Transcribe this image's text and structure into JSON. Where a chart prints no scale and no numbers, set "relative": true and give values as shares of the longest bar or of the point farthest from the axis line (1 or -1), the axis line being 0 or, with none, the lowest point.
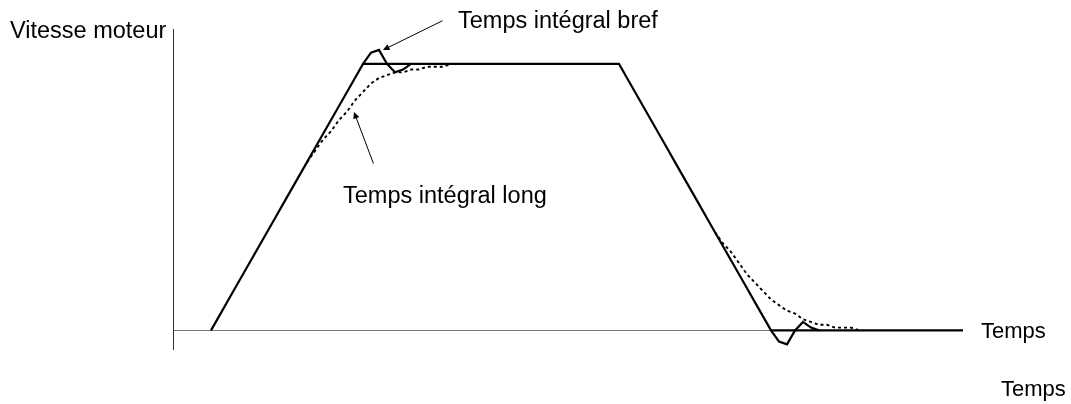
{
  "chart_data": {
    "type": "line",
    "relative": true,
    "xlabel": "Temps",
    "ylabel": "Vitesse moteur",
    "annotations": [
      "Temps intégral bref",
      "Temps intégral long",
      "Temps"
    ],
    "categories": [
      null,
      null,
      null,
      null,
      null,
      null,
      null,
      null,
      null,
      null,
      null,
      null,
      null,
      null,
      null,
      null,
      null,
      null,
      null,
      null,
      null,
      null,
      null,
      null,
      null,
      null,
      null,
      null,
      null,
      null,
      null,
      null,
      null,
      null,
      null,
      null,
      null,
      null,
      null,
      null,
      null,
      null,
      null,
      null,
      null,
      null,
      null,
      null,
      null,
      null,
      null,
      null,
      null,
      null,
      null,
      null,
      null,
      null,
      null,
      null,
      null,
      null,
      null,
      null,
      null,
      null,
      null,
      null,
      null,
      null,
      null,
      null,
      null,
      null,
      null,
      null,
      null,
      null,
      null,
      null,
      null,
      null,
      null,
      null,
      null,
      null,
      null,
      null,
      null,
      null,
      null,
      null,
      null,
      null,
      null,
      null,
      null,
      null,
      null
    ],
    "series": [
      {
        "color": "#000000",
        "line_style": "solid",
        "values": [
          null,
          null,
          null,
          null,
          0,
          0.05,
          0.1,
          0.15,
          0.2,
          0.25,
          0.3,
          0.35,
          0.4,
          0.45,
          0.5,
          0.55,
          0.6,
          0.65,
          0.7,
          0.75,
          0.8,
          0.85,
          0.9,
          0.95,
          0.95,
          0.95,
          0.95,
          0.95,
          0.95,
          0.95,
          0.95,
          0.95,
          0.95,
          0.95,
          0.95,
          0.95,
          0.95,
          0.95,
          0.95,
          0.95,
          0.95,
          0.95,
          0.95,
          0.95,
          0.95,
          0.95,
          0.95,
          0.95,
          0.95,
          0.95,
          0.95,
          0.95,
          0.95,
          0.95,
          0.95,
          0.95,
          0.9,
          0.85,
          0.8,
          0.75,
          0.7,
          0.65,
          0.6,
          0.55,
          0.5,
          0.45,
          0.4,
          0.35,
          0.3,
          0.25,
          0.2,
          0.15,
          0.1,
          0.05,
          0,
          0,
          0,
          0,
          0,
          0,
          0,
          0,
          0,
          0,
          0,
          0,
          0,
          0,
          0,
          0,
          0,
          0,
          0,
          0,
          0,
          0,
          0,
          0,
          0
        ]
      },
      {
        "color": "#000000",
        "line_style": "solid",
        "values": [
          null,
          null,
          null,
          null,
          null,
          null,
          null,
          null,
          null,
          null,
          null,
          null,
          null,
          null,
          null,
          null,
          null,
          null,
          null,
          null,
          null,
          null,
          null,
          0.95,
          0.99,
          1.0,
          0.95,
          0.92,
          0.93,
          0.95,
          null,
          null,
          null,
          null,
          null,
          null,
          null,
          null,
          null,
          null,
          null,
          null,
          null,
          null,
          null,
          null,
          null,
          null,
          null,
          null,
          null,
          null,
          null,
          null,
          null,
          null,
          null,
          null,
          null,
          null,
          null,
          null,
          null,
          null,
          null,
          null,
          null,
          null,
          null,
          null,
          null,
          null,
          null,
          null,
          0,
          -0.04,
          -0.05,
          0,
          0.03,
          0.01,
          0,
          null,
          null,
          null,
          null,
          null,
          null,
          null,
          null,
          null,
          null,
          null,
          null,
          null,
          null,
          null,
          null,
          null,
          null
        ]
      },
      {
        "color": "#000000",
        "line_style": "dotted",
        "values": [
          null,
          null,
          null,
          null,
          null,
          null,
          null,
          null,
          null,
          null,
          null,
          null,
          null,
          null,
          null,
          null,
          0.6,
          0.64,
          0.68,
          0.71,
          0.75,
          0.78,
          0.82,
          0.85,
          0.88,
          0.9,
          0.91,
          0.92,
          0.92,
          0.93,
          0.93,
          0.94,
          0.94,
          0.94,
          0.95,
          null,
          null,
          null,
          null,
          null,
          null,
          null,
          null,
          null,
          null,
          null,
          null,
          null,
          null,
          null,
          null,
          null,
          null,
          null,
          null,
          null,
          null,
          null,
          null,
          null,
          null,
          null,
          null,
          null,
          null,
          null,
          null,
          0.35,
          0.31,
          0.28,
          0.24,
          0.2,
          0.17,
          0.14,
          0.11,
          0.09,
          0.07,
          0.06,
          0.04,
          0.03,
          0.02,
          0.02,
          0.01,
          0.01,
          0.01,
          0,
          null,
          null,
          null,
          null,
          null,
          null,
          null,
          null,
          null,
          null,
          null,
          null,
          null
        ]
      }
    ]
  }
}
